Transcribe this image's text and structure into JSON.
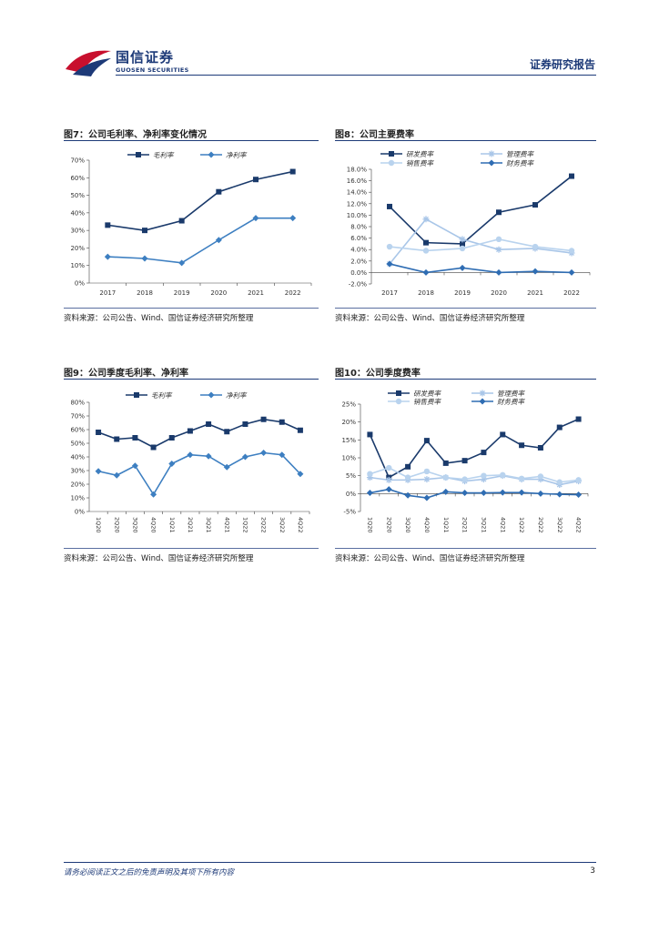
{
  "header": {
    "logo_cn": "国信证券",
    "logo_en": "GUOSEN SECURITIES",
    "report_type": "证券研究报告"
  },
  "footer": {
    "disclaimer": "请务必阅读正文之后的免责声明及其项下所有内容",
    "page": "3"
  },
  "colors": {
    "dark": "#1a3a6b",
    "mid": "#3d7fc1",
    "light": "#a9c6e8",
    "lighter": "#b9d3ee"
  },
  "figures": [
    {
      "title": "图7：公司毛利率、净利率变化情况",
      "source": "资料来源：公司公告、Wind、国信证券经济研究所整理"
    },
    {
      "title": "图8：公司主要费率",
      "source": "资料来源：公司公告、Wind、国信证券经济研究所整理"
    },
    {
      "title": "图9：公司季度毛利率、净利率",
      "source": "资料来源：公司公告、Wind、国信证券经济研究所整理"
    },
    {
      "title": "图10：公司季度费率",
      "source": "资料来源：公司公告、Wind、国信证券经济研究所整理"
    }
  ],
  "chart_data": [
    {
      "type": "line",
      "title": "",
      "categories": [
        "2017",
        "2018",
        "2019",
        "2020",
        "2021",
        "2022"
      ],
      "ylim": [
        0,
        70
      ],
      "yticks": [
        0,
        10,
        20,
        30,
        40,
        50,
        60,
        70
      ],
      "ytick_labels": [
        "0%",
        "10%",
        "20%",
        "30%",
        "40%",
        "50%",
        "60%",
        "70%"
      ],
      "legend_position": "top",
      "grid": false,
      "series": [
        {
          "name": "毛利率",
          "values": [
            33,
            30,
            35.5,
            52,
            59,
            63.5
          ],
          "color": "#1a3a6b",
          "marker": "square"
        },
        {
          "name": "净利率",
          "values": [
            15,
            14,
            11.5,
            24.5,
            37,
            37
          ],
          "color": "#3d7fc1",
          "marker": "diamond"
        }
      ]
    },
    {
      "type": "line",
      "title": "",
      "categories": [
        "2017",
        "2018",
        "2019",
        "2020",
        "2021",
        "2022"
      ],
      "ylim": [
        -2,
        18
      ],
      "yticks": [
        -2,
        0,
        2,
        4,
        6,
        8,
        10,
        12,
        14,
        16,
        18
      ],
      "ytick_labels": [
        "-2.0%",
        "0.0%",
        "2.0%",
        "4.0%",
        "6.0%",
        "8.0%",
        "10.0%",
        "12.0%",
        "14.0%",
        "16.0%",
        "18.0%"
      ],
      "legend_position": "top",
      "grid": false,
      "series": [
        {
          "name": "研发费率",
          "values": [
            11.5,
            5.2,
            5.0,
            10.5,
            11.8,
            16.8
          ],
          "color": "#1a3a6b",
          "marker": "square"
        },
        {
          "name": "管理费率",
          "values": [
            1.5,
            9.3,
            5.8,
            4.0,
            4.2,
            3.4
          ],
          "color": "#a9c6e8",
          "marker": "star"
        },
        {
          "name": "销售费率",
          "values": [
            4.5,
            3.8,
            4.2,
            5.8,
            4.5,
            3.8
          ],
          "color": "#b9d3ee",
          "marker": "circle"
        },
        {
          "name": "财务费率",
          "values": [
            1.5,
            0.0,
            0.8,
            0.0,
            0.2,
            0.0
          ],
          "color": "#2f6db3",
          "marker": "diamond"
        }
      ]
    },
    {
      "type": "line",
      "title": "",
      "categories": [
        "1Q20",
        "2Q20",
        "3Q20",
        "4Q20",
        "1Q21",
        "2Q21",
        "3Q21",
        "4Q21",
        "1Q22",
        "2Q22",
        "3Q22",
        "4Q22"
      ],
      "ylim": [
        0,
        80
      ],
      "yticks": [
        0,
        10,
        20,
        30,
        40,
        50,
        60,
        70,
        80
      ],
      "ytick_labels": [
        "0%",
        "10%",
        "20%",
        "30%",
        "40%",
        "50%",
        "60%",
        "70%",
        "80%"
      ],
      "legend_position": "top",
      "grid": false,
      "series": [
        {
          "name": "毛利率",
          "values": [
            58,
            53,
            54,
            47,
            54,
            59,
            64,
            58.5,
            64,
            67.5,
            65.5,
            59.5
          ],
          "color": "#1a3a6b",
          "marker": "square"
        },
        {
          "name": "净利率",
          "values": [
            29.5,
            26.5,
            33.5,
            12.5,
            35,
            41.5,
            40.5,
            32.5,
            40,
            43,
            41.5,
            27.5
          ],
          "color": "#3d7fc1",
          "marker": "diamond"
        }
      ]
    },
    {
      "type": "line",
      "title": "",
      "categories": [
        "1Q20",
        "2Q20",
        "3Q20",
        "4Q20",
        "1Q21",
        "2Q21",
        "3Q21",
        "4Q21",
        "1Q22",
        "2Q22",
        "3Q22",
        "4Q22"
      ],
      "ylim": [
        -5,
        25
      ],
      "yticks": [
        -5,
        0,
        5,
        10,
        15,
        20,
        25
      ],
      "ytick_labels": [
        "-5%",
        "0%",
        "5%",
        "10%",
        "15%",
        "20%",
        "25%"
      ],
      "legend_position": "top",
      "grid": false,
      "series": [
        {
          "name": "研发费率",
          "values": [
            16.5,
            4.5,
            7.5,
            14.8,
            8.5,
            9.2,
            11.5,
            16.5,
            13.5,
            12.8,
            18.5,
            20.8
          ],
          "color": "#1a3a6b",
          "marker": "square"
        },
        {
          "name": "管理费率",
          "values": [
            4.5,
            3.8,
            3.8,
            4.0,
            4.5,
            3.5,
            4.0,
            5.0,
            4.0,
            4.0,
            2.5,
            3.5
          ],
          "color": "#a9c6e8",
          "marker": "star"
        },
        {
          "name": "销售费率",
          "values": [
            5.5,
            7.2,
            4.5,
            6.2,
            4.5,
            4.0,
            5.0,
            5.2,
            4.2,
            4.8,
            3.2,
            3.8
          ],
          "color": "#b9d3ee",
          "marker": "circle"
        },
        {
          "name": "财务费率",
          "values": [
            0.2,
            1.2,
            -0.5,
            -1.2,
            0.5,
            0.2,
            0.2,
            0.3,
            0.3,
            0.0,
            -0.2,
            -0.3
          ],
          "color": "#2f6db3",
          "marker": "diamond"
        }
      ]
    }
  ]
}
